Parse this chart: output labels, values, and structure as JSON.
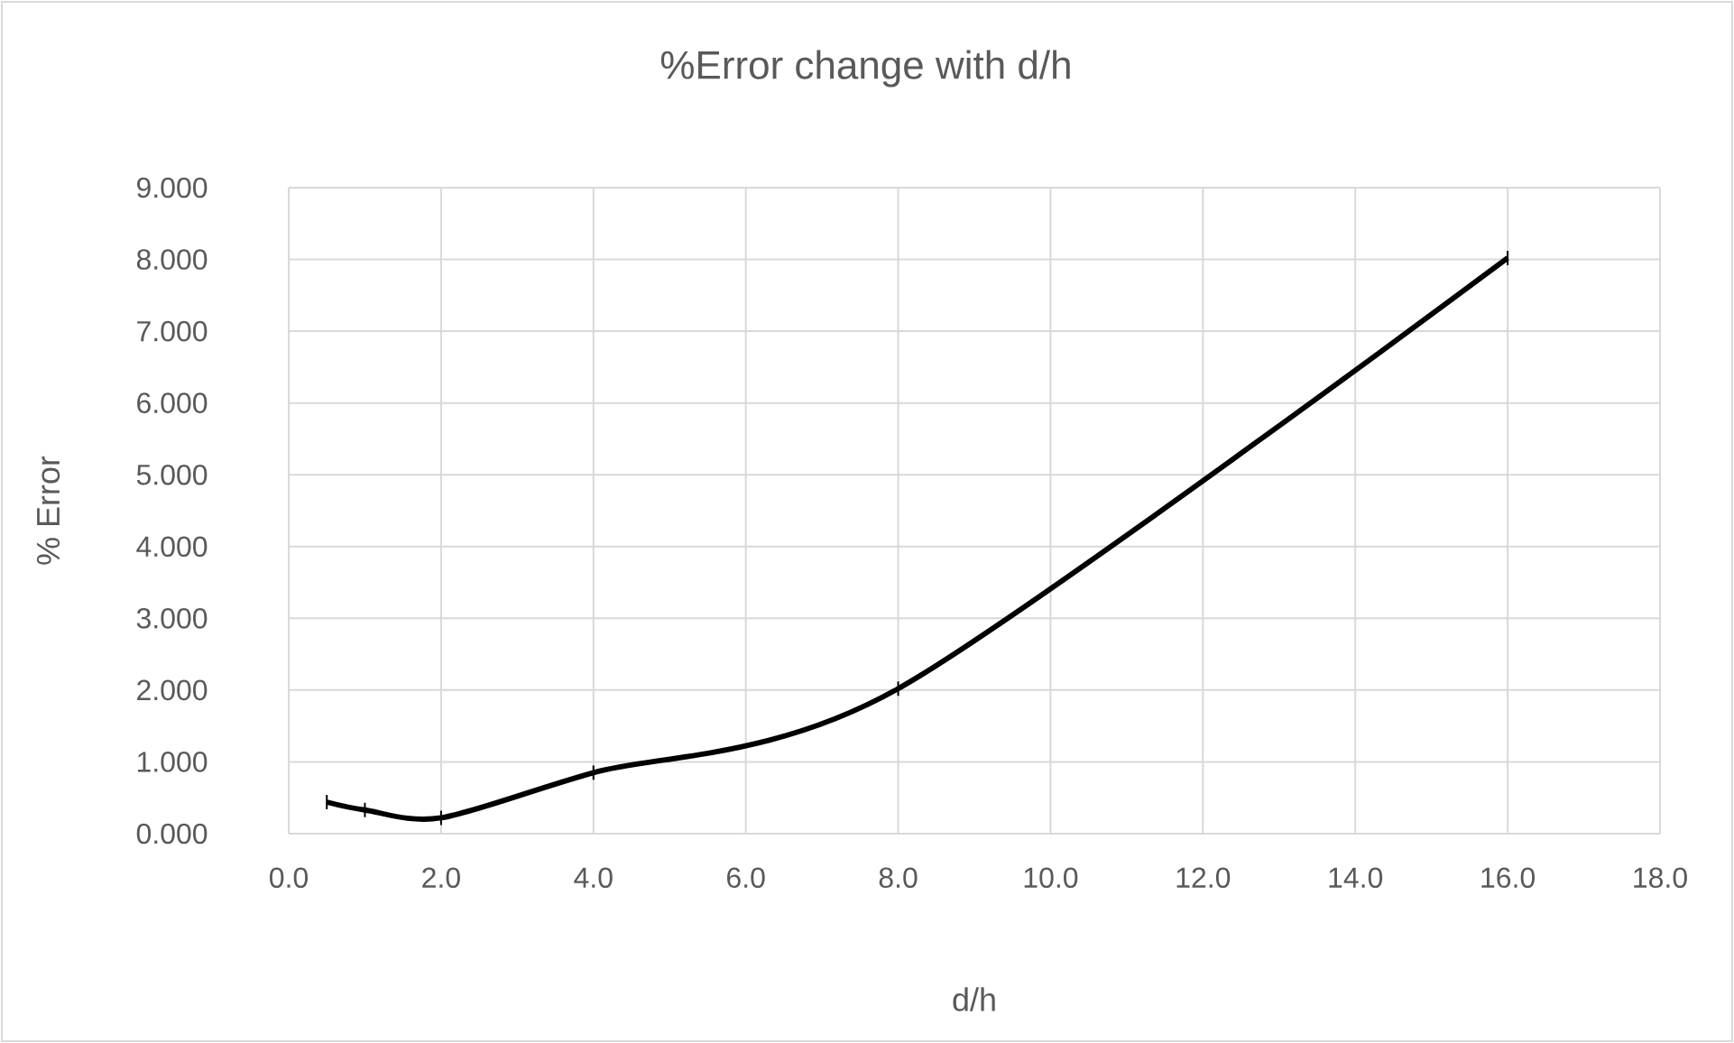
{
  "chart_data": {
    "type": "line",
    "title": "%Error change with d/h",
    "xlabel": "d/h",
    "ylabel": "% Error",
    "x": [
      0.5,
      1,
      2,
      4,
      8,
      16
    ],
    "values": [
      0.44,
      0.33,
      0.22,
      0.85,
      2.02,
      8.02
    ],
    "errors": [
      0.1,
      0.1,
      0.1,
      0.1,
      0.1,
      0.1
    ],
    "color": "#000000",
    "line_style": "solid",
    "grid": true,
    "xlim": [
      0,
      18
    ],
    "xticks": [
      {
        "value": 0,
        "label": "0.0"
      },
      {
        "value": 2,
        "label": "2.0"
      },
      {
        "value": 4,
        "label": "4.0"
      },
      {
        "value": 6,
        "label": "6.0"
      },
      {
        "value": 8,
        "label": "8.0"
      },
      {
        "value": 10,
        "label": "10.0"
      },
      {
        "value": 12,
        "label": "12.0"
      },
      {
        "value": 14,
        "label": "14.0"
      },
      {
        "value": 16,
        "label": "16.0"
      },
      {
        "value": 18,
        "label": "18.0"
      }
    ],
    "ylim": [
      0,
      9
    ],
    "yticks": [
      {
        "value": 0,
        "label": "0.000"
      },
      {
        "value": 1,
        "label": "1.000"
      },
      {
        "value": 2,
        "label": "2.000"
      },
      {
        "value": 3,
        "label": "3.000"
      },
      {
        "value": 4,
        "label": "4.000"
      },
      {
        "value": 5,
        "label": "5.000"
      },
      {
        "value": 6,
        "label": "6.000"
      },
      {
        "value": 7,
        "label": "7.000"
      },
      {
        "value": 8,
        "label": "8.000"
      },
      {
        "value": 9,
        "label": "9.000"
      }
    ]
  }
}
